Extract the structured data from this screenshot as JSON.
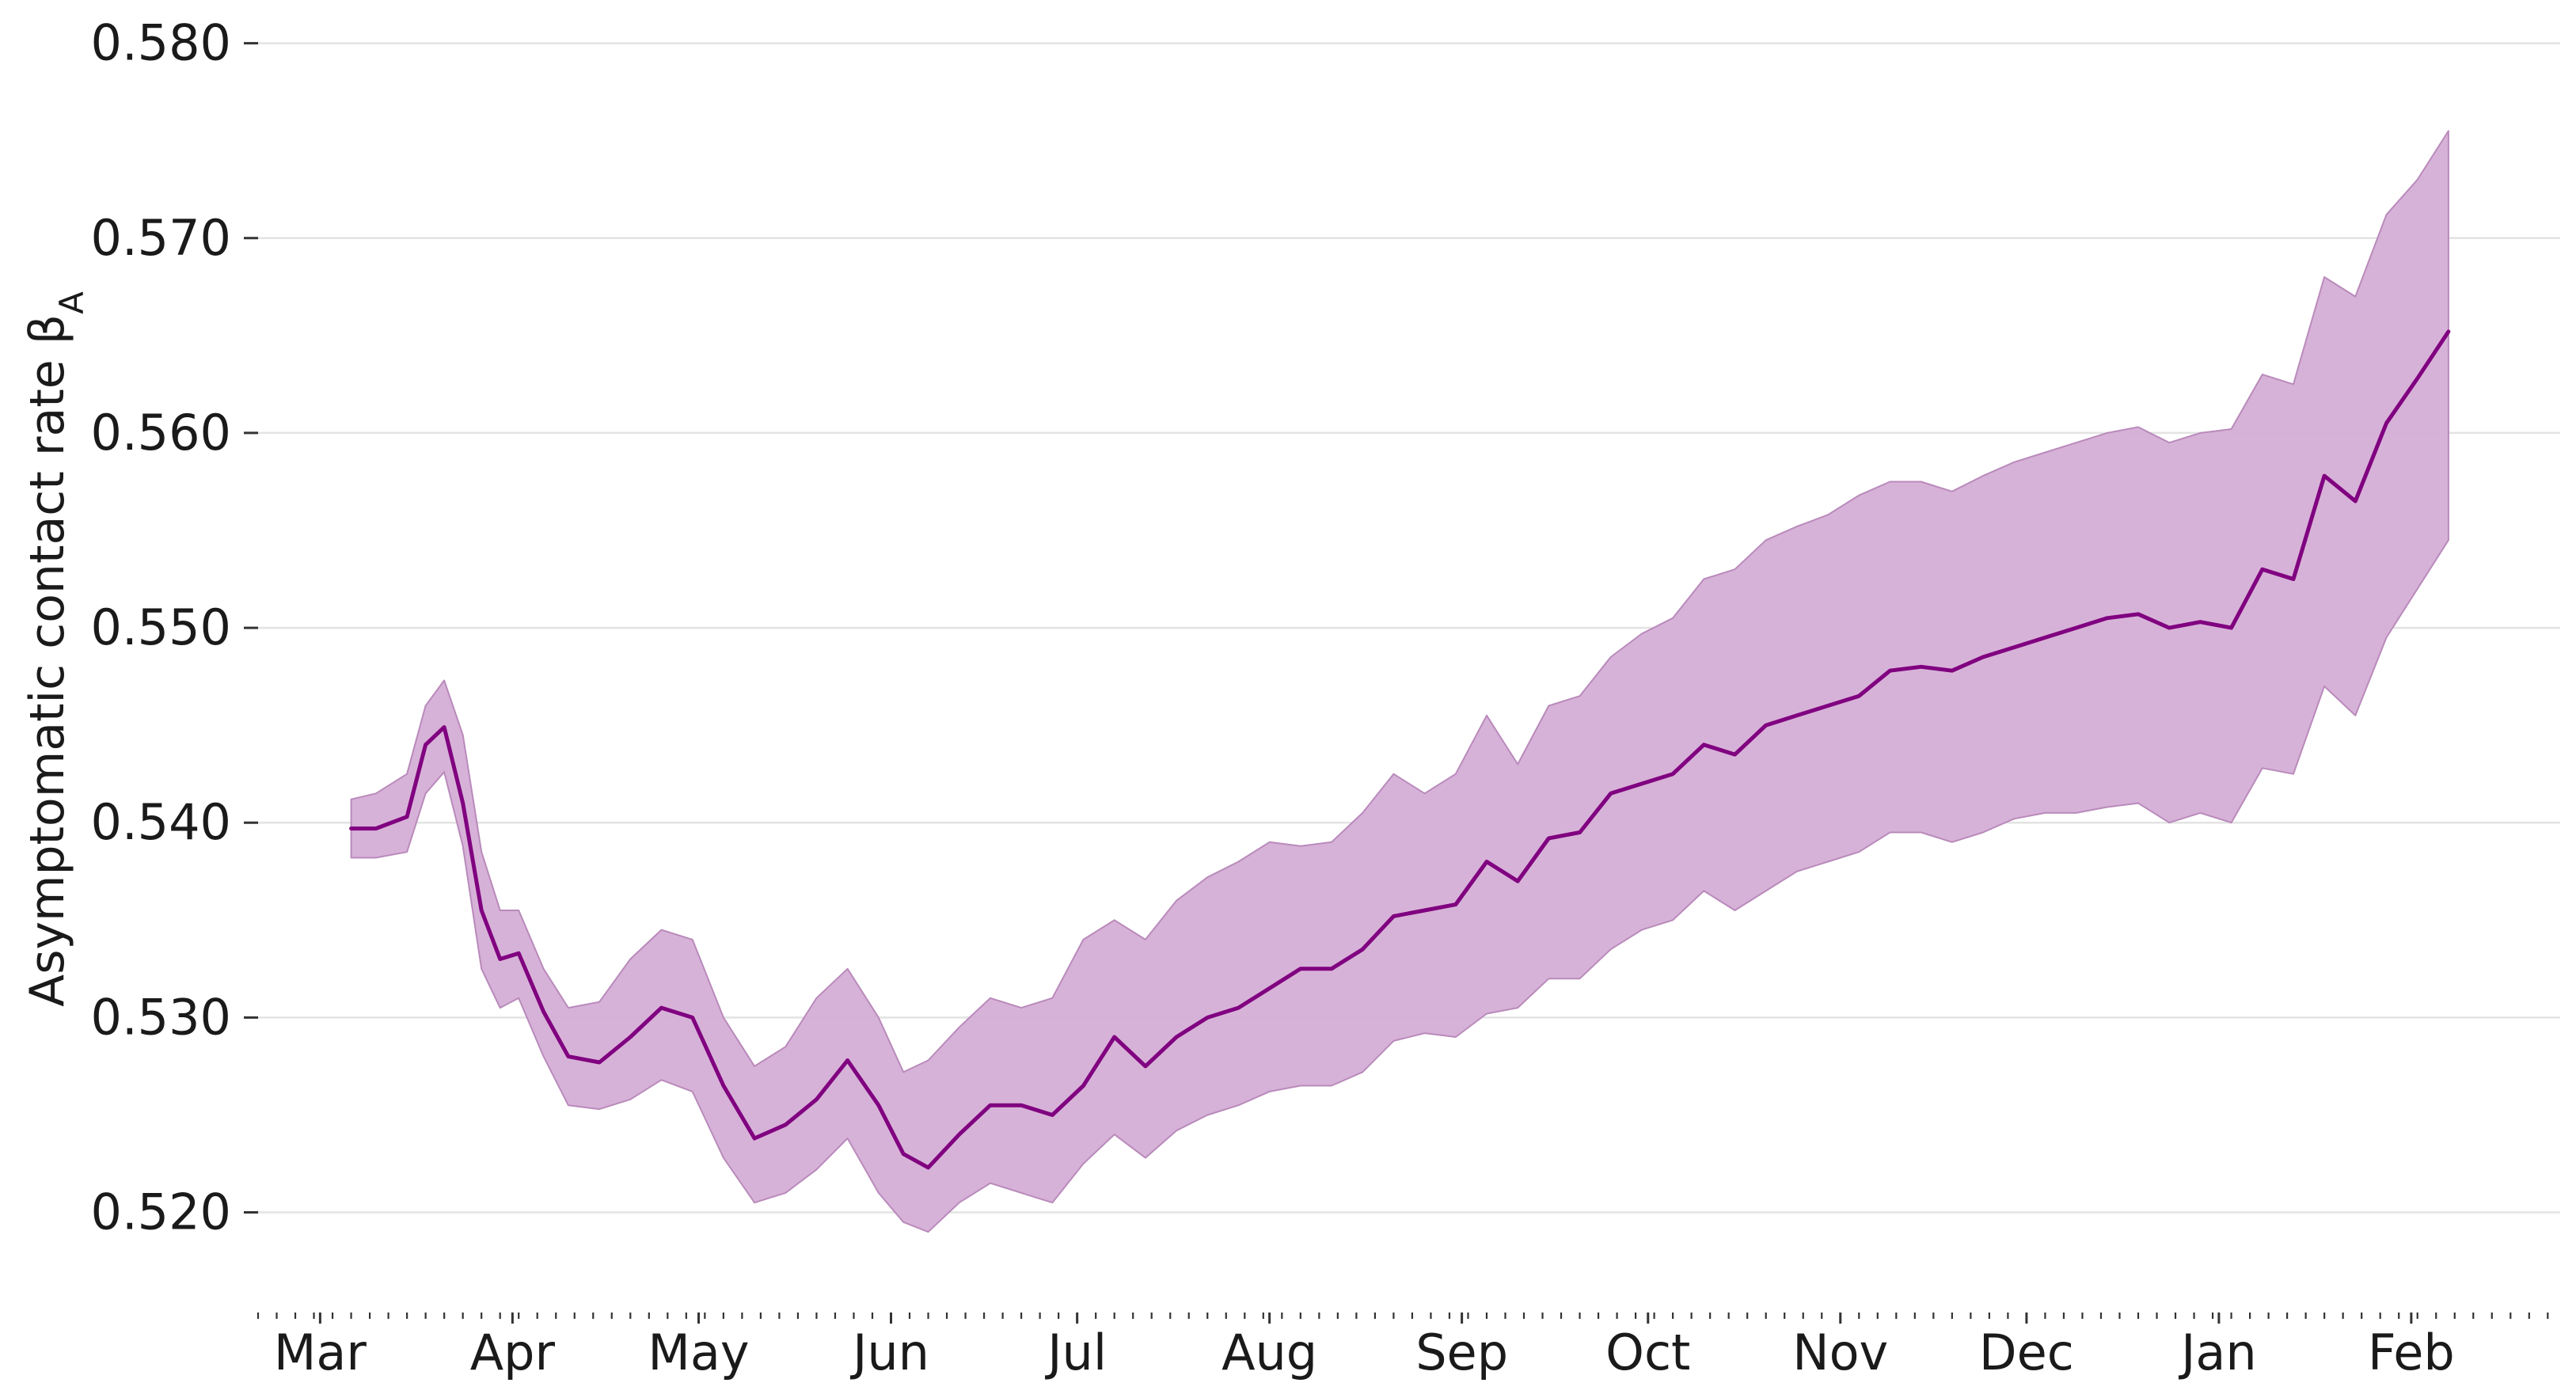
{
  "chart_data": {
    "type": "area",
    "ylabel": "Asymptomatic contact rate β",
    "ylabel_subscript": "A",
    "ylim": [
      0.516,
      0.581
    ],
    "yticks": [
      "0.520",
      "0.530",
      "0.540",
      "0.550",
      "0.560",
      "0.570",
      "0.580"
    ],
    "xlim": [
      "2020-02-20",
      "2021-02-25"
    ],
    "xtick_dates": [
      "2020-03-01",
      "2020-04-01",
      "2020-05-01",
      "2020-06-01",
      "2020-07-01",
      "2020-08-01",
      "2020-09-01",
      "2020-10-01",
      "2020-11-01",
      "2020-12-01",
      "2021-01-01",
      "2021-02-01"
    ],
    "xtick_labels": [
      "Mar",
      "Apr",
      "May",
      "Jun",
      "Jul",
      "Aug",
      "Sep",
      "Oct",
      "Nov",
      "Dec",
      "Jan",
      "Feb"
    ],
    "grid": "horizontal",
    "colors": {
      "line": "#800080",
      "band": "#d5aed6"
    },
    "series": [
      {
        "x": [
          "2020-03-06",
          "2020-03-10",
          "2020-03-15",
          "2020-03-18",
          "2020-03-21",
          "2020-03-24",
          "2020-03-27",
          "2020-03-30",
          "2020-04-02",
          "2020-04-06",
          "2020-04-10",
          "2020-04-15",
          "2020-04-20",
          "2020-04-25",
          "2020-04-30",
          "2020-05-05",
          "2020-05-10",
          "2020-05-15",
          "2020-05-20",
          "2020-05-25",
          "2020-05-30",
          "2020-06-03",
          "2020-06-07",
          "2020-06-12",
          "2020-06-17",
          "2020-06-22",
          "2020-06-27",
          "2020-07-02",
          "2020-07-07",
          "2020-07-12",
          "2020-07-17",
          "2020-07-22",
          "2020-07-27",
          "2020-08-01",
          "2020-08-06",
          "2020-08-11",
          "2020-08-16",
          "2020-08-21",
          "2020-08-26",
          "2020-08-31",
          "2020-09-05",
          "2020-09-10",
          "2020-09-15",
          "2020-09-20",
          "2020-09-25",
          "2020-09-30",
          "2020-10-05",
          "2020-10-10",
          "2020-10-15",
          "2020-10-20",
          "2020-10-25",
          "2020-10-30",
          "2020-11-04",
          "2020-11-09",
          "2020-11-14",
          "2020-11-19",
          "2020-11-24",
          "2020-11-29",
          "2020-12-04",
          "2020-12-09",
          "2020-12-14",
          "2020-12-19",
          "2020-12-24",
          "2020-12-29",
          "2021-01-03",
          "2021-01-08",
          "2021-01-13",
          "2021-01-18",
          "2021-01-23",
          "2021-01-28",
          "2021-02-02",
          "2021-02-07"
        ],
        "mean": [
          0.5397,
          0.5397,
          0.5403,
          0.544,
          0.5449,
          0.541,
          0.5355,
          0.533,
          0.5333,
          0.5303,
          0.528,
          0.5277,
          0.529,
          0.5305,
          0.53,
          0.5265,
          0.5238,
          0.5245,
          0.5258,
          0.5278,
          0.5255,
          0.523,
          0.5223,
          0.524,
          0.5255,
          0.5255,
          0.525,
          0.5265,
          0.529,
          0.5275,
          0.529,
          0.53,
          0.5305,
          0.5315,
          0.5325,
          0.5325,
          0.5335,
          0.5352,
          0.5355,
          0.5358,
          0.538,
          0.537,
          0.5392,
          0.5395,
          0.5415,
          0.542,
          0.5425,
          0.544,
          0.5435,
          0.545,
          0.5455,
          0.546,
          0.5465,
          0.5478,
          0.548,
          0.5478,
          0.5485,
          0.549,
          0.5495,
          0.55,
          0.5505,
          0.5507,
          0.55,
          0.5503,
          0.55,
          0.553,
          0.5525,
          0.5578,
          0.5565,
          0.5605,
          0.5628,
          0.5652
        ],
        "upper": [
          0.5412,
          0.5415,
          0.5425,
          0.546,
          0.5473,
          0.5445,
          0.5385,
          0.5355,
          0.5355,
          0.5325,
          0.5305,
          0.5308,
          0.533,
          0.5345,
          0.534,
          0.53,
          0.5275,
          0.5285,
          0.531,
          0.5325,
          0.53,
          0.5272,
          0.5278,
          0.5295,
          0.531,
          0.5305,
          0.531,
          0.534,
          0.535,
          0.534,
          0.536,
          0.5372,
          0.538,
          0.539,
          0.5388,
          0.539,
          0.5405,
          0.5425,
          0.5415,
          0.5425,
          0.5455,
          0.543,
          0.546,
          0.5465,
          0.5485,
          0.5497,
          0.5505,
          0.5525,
          0.553,
          0.5545,
          0.5552,
          0.5558,
          0.5568,
          0.5575,
          0.5575,
          0.557,
          0.5578,
          0.5585,
          0.559,
          0.5595,
          0.56,
          0.5603,
          0.5595,
          0.56,
          0.5602,
          0.563,
          0.5625,
          0.568,
          0.567,
          0.5712,
          0.573,
          0.5755
        ],
        "lower": [
          0.5382,
          0.5382,
          0.5385,
          0.5415,
          0.5426,
          0.5388,
          0.5325,
          0.5305,
          0.531,
          0.528,
          0.5255,
          0.5253,
          0.5258,
          0.5268,
          0.5262,
          0.5228,
          0.5205,
          0.521,
          0.5222,
          0.5238,
          0.521,
          0.5195,
          0.519,
          0.5205,
          0.5215,
          0.521,
          0.5205,
          0.5225,
          0.524,
          0.5228,
          0.5242,
          0.525,
          0.5255,
          0.5262,
          0.5265,
          0.5265,
          0.5272,
          0.5288,
          0.5292,
          0.529,
          0.5302,
          0.5305,
          0.532,
          0.532,
          0.5335,
          0.5345,
          0.535,
          0.5365,
          0.5355,
          0.5365,
          0.5375,
          0.538,
          0.5385,
          0.5395,
          0.5395,
          0.539,
          0.5395,
          0.5402,
          0.5405,
          0.5405,
          0.5408,
          0.541,
          0.54,
          0.5405,
          0.54,
          0.5428,
          0.5425,
          0.547,
          0.5455,
          0.5495,
          0.552,
          0.5545
        ]
      }
    ]
  }
}
